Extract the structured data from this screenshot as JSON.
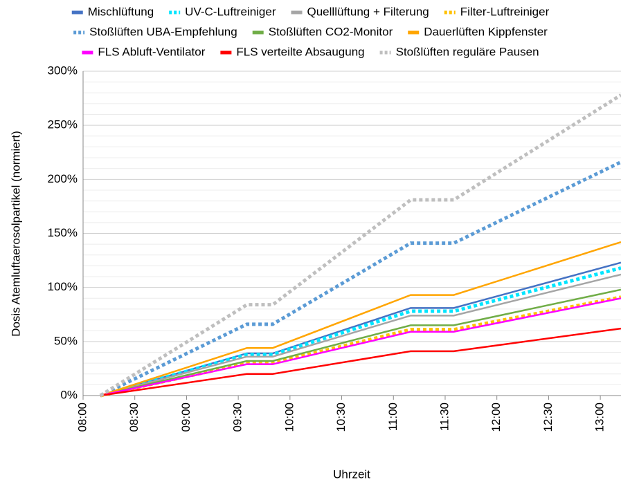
{
  "chart_data": {
    "type": "line",
    "y_label": "Dosis Atemluftaerosolpartikel (normiert)",
    "x_label": "Uhrzeit",
    "x": [
      "08:10",
      "09:35",
      "09:50",
      "11:10",
      "11:35",
      "13:12"
    ],
    "xlim": [
      "08:00",
      "13:12"
    ],
    "xticks": [
      "08:00",
      "08:30",
      "09:00",
      "09:30",
      "10:00",
      "10:30",
      "11:00",
      "11:30",
      "12:00",
      "12:30",
      "13:00"
    ],
    "ylim": [
      0,
      300
    ],
    "yticks": [
      {
        "value": 0,
        "label": "0%"
      },
      {
        "value": 50,
        "label": "50%"
      },
      {
        "value": 100,
        "label": "100%"
      },
      {
        "value": 150,
        "label": "150%"
      },
      {
        "value": 200,
        "label": "200%"
      },
      {
        "value": 250,
        "label": "250%"
      },
      {
        "value": 300,
        "label": "300%"
      }
    ],
    "minor_yticks": [
      10,
      20,
      30,
      40,
      60,
      70,
      80,
      90,
      110,
      120,
      130,
      140,
      160,
      170,
      180,
      190,
      210,
      220,
      230,
      240,
      260,
      270,
      280,
      290
    ],
    "grid": true,
    "legend": "top",
    "series": [
      {
        "name": "Mischlüftung",
        "color": "#4472c4",
        "style": "solid",
        "values": [
          0,
          39,
          39,
          81,
          81,
          123
        ]
      },
      {
        "name": "UV-C-Luftreiniger",
        "color": "#00e5ff",
        "style": "dotted",
        "values": [
          0,
          38,
          38,
          78,
          78,
          118
        ]
      },
      {
        "name": "Quelllüftung + Filterung",
        "color": "#a5a5a5",
        "style": "solid",
        "values": [
          0,
          36,
          36,
          74,
          74,
          112
        ]
      },
      {
        "name": "Filter-Luftreiniger",
        "color": "#ffc000",
        "style": "dotted",
        "values": [
          0,
          30,
          30,
          61,
          61,
          91
        ]
      },
      {
        "name": "Stoßlüften UBA-Empfehlung",
        "color": "#5b9bd5",
        "style": "dotted",
        "values": [
          0,
          66,
          66,
          141,
          141,
          216
        ]
      },
      {
        "name": "Stoßlüften CO2-Monitor",
        "color": "#70ad47",
        "style": "solid",
        "values": [
          0,
          32,
          32,
          65,
          65,
          98
        ]
      },
      {
        "name": "Dauerlüften Kippfenster",
        "color": "#ffa500",
        "style": "solid",
        "values": [
          0,
          44,
          44,
          93,
          93,
          142
        ]
      },
      {
        "name": "FLS Abluft-Ventilator",
        "color": "#ff00ff",
        "style": "solid",
        "values": [
          0,
          29,
          29,
          59,
          59,
          90
        ]
      },
      {
        "name": "FLS verteilte Absaugung",
        "color": "#ff0000",
        "style": "solid",
        "values": [
          0,
          20,
          20,
          41,
          41,
          62
        ]
      },
      {
        "name": "Stoßlüften reguläre Pausen",
        "color": "#bfbfbf",
        "style": "dotted",
        "values": [
          0,
          84,
          84,
          181,
          181,
          278
        ]
      }
    ]
  }
}
